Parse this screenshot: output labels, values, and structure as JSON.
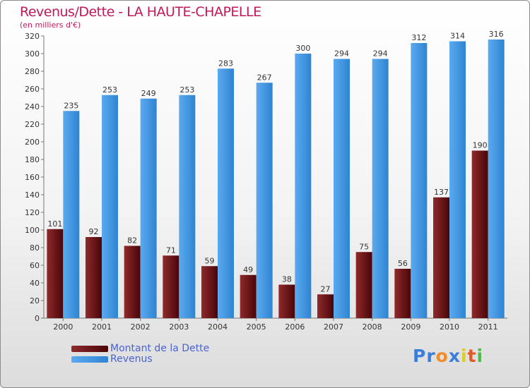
{
  "chart_data": {
    "type": "bar",
    "title": "Revenus/Dette - LA HAUTE-CHAPELLE",
    "subtitle": "(en milliers d'€)",
    "categories": [
      "2000",
      "2001",
      "2002",
      "2003",
      "2004",
      "2005",
      "2006",
      "2007",
      "2008",
      "2009",
      "2010",
      "2011"
    ],
    "series": [
      {
        "name": "Montant de la Dette",
        "color": "#7a1518",
        "values": [
          101,
          92,
          82,
          71,
          59,
          49,
          38,
          27,
          75,
          56,
          137,
          190
        ]
      },
      {
        "name": "Revenus",
        "color": "#3f9ae2",
        "values": [
          235,
          253,
          249,
          253,
          283,
          267,
          300,
          294,
          294,
          312,
          314,
          316
        ]
      }
    ],
    "ylim": [
      0,
      320
    ],
    "ytick_step": 20,
    "grid": false,
    "legend_position": "bottom-left"
  },
  "logo": {
    "letters": [
      "P",
      "r",
      "o",
      "x",
      "i",
      "t",
      "i"
    ],
    "colors": [
      "#3b7dd8",
      "#3b7dd8",
      "#f28c28",
      "#3b7dd8",
      "#d9cd2a",
      "#e05a2a",
      "#52b848"
    ]
  }
}
